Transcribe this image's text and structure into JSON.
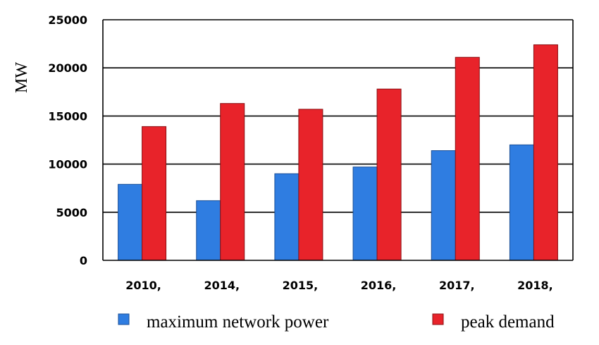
{
  "chart_data": {
    "type": "bar",
    "title": "",
    "xlabel": "",
    "ylabel": "MW",
    "categories": [
      "2010,",
      "2014,",
      "2015,",
      "2016,",
      "2017,",
      "2018,"
    ],
    "series": [
      {
        "name": "maximum network power",
        "color": "#2f7de1",
        "values": [
          7900,
          6200,
          9000,
          9700,
          11400,
          12000
        ]
      },
      {
        "name": "peak demand",
        "color": "#e8232a",
        "values": [
          13900,
          16300,
          15700,
          17800,
          21100,
          22400
        ]
      }
    ],
    "ylim": [
      0,
      25000
    ],
    "yticks": [
      "0",
      "5000",
      "10000",
      "15000",
      "20000",
      "25000"
    ],
    "grid": true,
    "legend_position": "bottom"
  }
}
